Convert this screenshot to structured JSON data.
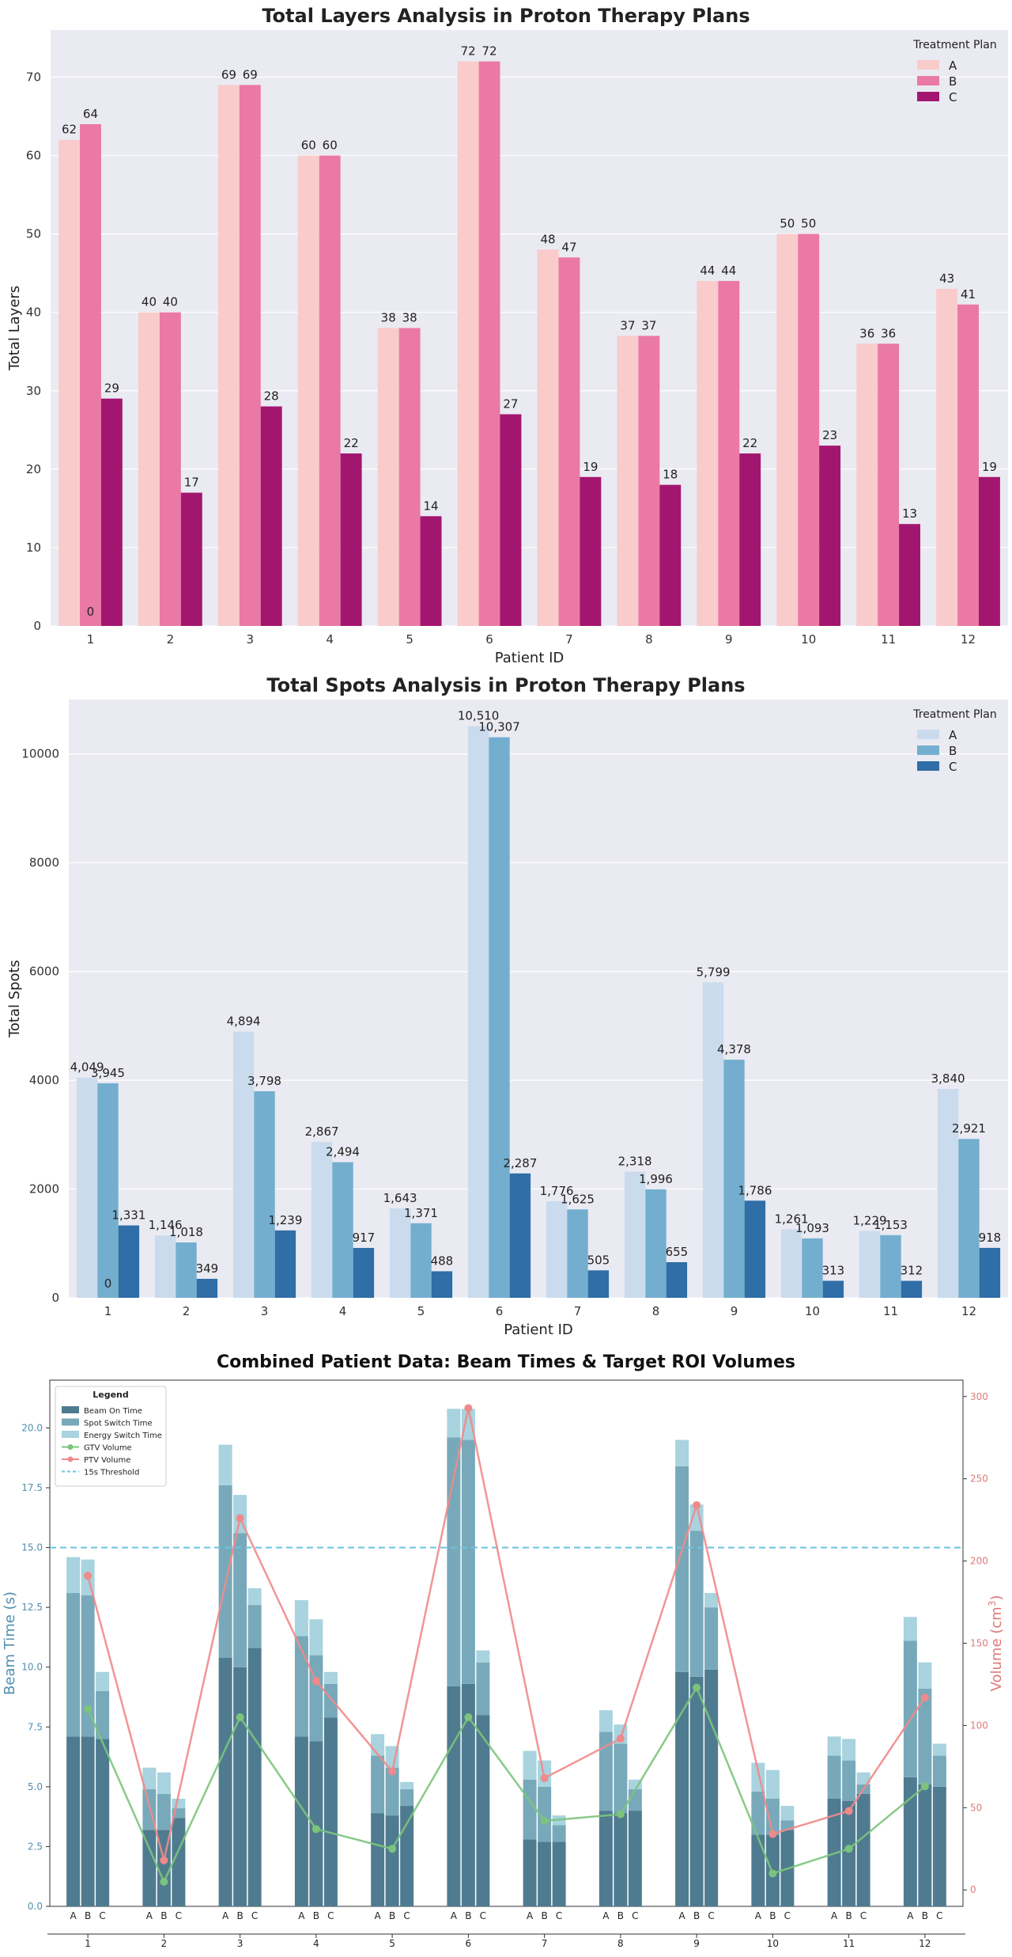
{
  "chart_data": [
    {
      "type": "bar",
      "title": "Total Layers Analysis in Proton Therapy Plans",
      "xlabel": "Patient ID",
      "ylabel": "Total Layers",
      "categories": [
        "1",
        "2",
        "3",
        "4",
        "5",
        "6",
        "7",
        "8",
        "9",
        "10",
        "11",
        "12"
      ],
      "ylim": [
        0,
        76
      ],
      "yticks": [
        0,
        10,
        20,
        30,
        40,
        50,
        60,
        70
      ],
      "grid": true,
      "legend_title": "Treatment Plan",
      "legend_position": "top-right",
      "series": [
        {
          "name": "A",
          "color": "#f9cbcb",
          "values": [
            62,
            40,
            69,
            60,
            38,
            72,
            48,
            37,
            44,
            50,
            36,
            43
          ],
          "labels": [
            "62",
            "40",
            "69",
            "60",
            "38",
            "72",
            "48",
            "37",
            "44",
            "50",
            "36",
            "43"
          ]
        },
        {
          "name": "B",
          "color": "#ea79a6",
          "values": [
            64,
            40,
            69,
            60,
            38,
            72,
            47,
            37,
            44,
            50,
            36,
            41
          ],
          "labels": [
            "64",
            "40",
            "69",
            "60",
            "38",
            "72",
            "47",
            "37",
            "44",
            "50",
            "36",
            "41"
          ]
        },
        {
          "name": "C",
          "color": "#a3166f",
          "values": [
            29,
            17,
            28,
            22,
            14,
            27,
            19,
            18,
            22,
            23,
            13,
            19
          ],
          "labels": [
            "29",
            "17",
            "28",
            "22",
            "14",
            "27",
            "19",
            "18",
            "22",
            "23",
            "13",
            "19"
          ]
        }
      ],
      "extra_labels": [
        {
          "category": "1",
          "text": "0"
        }
      ]
    },
    {
      "type": "bar",
      "title": "Total Spots Analysis in Proton Therapy Plans",
      "xlabel": "Patient ID",
      "ylabel": "Total Spots",
      "categories": [
        "1",
        "2",
        "3",
        "4",
        "5",
        "6",
        "7",
        "8",
        "9",
        "10",
        "11",
        "12"
      ],
      "ylim": [
        0,
        11000
      ],
      "yticks": [
        0,
        2000,
        4000,
        6000,
        8000,
        10000
      ],
      "grid": true,
      "legend_title": "Treatment Plan",
      "legend_position": "top-right",
      "series": [
        {
          "name": "A",
          "color": "#cadbed",
          "values": [
            4049,
            1146,
            4894,
            2867,
            1643,
            10510,
            1776,
            2318,
            5799,
            1261,
            1229,
            3840
          ],
          "labels": [
            "4,049",
            "1,146",
            "4,894",
            "2,867",
            "1,643",
            "10,510",
            "1,776",
            "2,318",
            "5,799",
            "1,261",
            "1,229",
            "3,840"
          ]
        },
        {
          "name": "B",
          "color": "#74aecf",
          "values": [
            3945,
            1018,
            3798,
            2494,
            1371,
            10307,
            1625,
            1996,
            4378,
            1093,
            1153,
            2921
          ],
          "labels": [
            "3,945",
            "1,018",
            "3,798",
            "2,494",
            "1,371",
            "10,307",
            "1,625",
            "1,996",
            "4,378",
            "1,093",
            "1,153",
            "2,921"
          ]
        },
        {
          "name": "C",
          "color": "#2f6ea6",
          "values": [
            1331,
            349,
            1239,
            917,
            488,
            2287,
            505,
            655,
            1786,
            313,
            312,
            918
          ],
          "labels": [
            "1,331",
            "349",
            "1,239",
            "917",
            "488",
            "2,287",
            "505",
            "655",
            "1,786",
            "313",
            "312",
            "918"
          ]
        }
      ],
      "extra_labels": [
        {
          "category": "1",
          "text": "0"
        }
      ]
    },
    {
      "type": "bar",
      "title": "Combined Patient Data: Beam Times & Target ROI Volumes",
      "ylabel": "Beam Time (s)",
      "ylabel_right": "Volume (cm3)",
      "categories": [
        "1",
        "2",
        "3",
        "4",
        "5",
        "6",
        "7",
        "8",
        "9",
        "10",
        "11",
        "12"
      ],
      "plans": [
        "A",
        "B",
        "C"
      ],
      "ylim": [
        0,
        22
      ],
      "yticks": [
        0.0,
        2.5,
        5.0,
        7.5,
        10.0,
        12.5,
        15.0,
        17.5,
        20.0
      ],
      "ylim_right": [
        -10,
        310
      ],
      "yticks_right": [
        0,
        50,
        100,
        150,
        200,
        250,
        300
      ],
      "threshold": 15,
      "grid": false,
      "legend_position": "top-left",
      "legend_title": "Legend",
      "legend": [
        "Beam On Time",
        "Spot Switch Time",
        "Energy Switch Time",
        "GTV Volume",
        "PTV Volume",
        "15s Threshold"
      ],
      "stack_colors": [
        "#4f7b90",
        "#78a9ba",
        "#a8d3df"
      ],
      "series": [
        {
          "name": "Beam On Time",
          "values": [
            [
              7.1,
              7.1,
              7.0
            ],
            [
              3.2,
              3.2,
              3.7
            ],
            [
              10.4,
              10.0,
              10.8
            ],
            [
              7.1,
              6.9,
              7.9
            ],
            [
              3.9,
              3.8,
              4.2
            ],
            [
              9.2,
              9.3,
              8.0
            ],
            [
              2.8,
              2.7,
              2.7
            ],
            [
              4.0,
              3.9,
              4.0
            ],
            [
              9.8,
              9.6,
              9.9
            ],
            [
              3.0,
              3.0,
              3.2
            ],
            [
              4.5,
              4.4,
              4.7
            ],
            [
              5.4,
              5.1,
              5.0
            ]
          ]
        },
        {
          "name": "Spot Switch Time",
          "values": [
            [
              6.0,
              5.9,
              2.0
            ],
            [
              1.7,
              1.5,
              0.4
            ],
            [
              7.2,
              5.6,
              1.8
            ],
            [
              4.2,
              3.6,
              1.4
            ],
            [
              2.4,
              2.0,
              0.7
            ],
            [
              10.4,
              10.2,
              2.2
            ],
            [
              2.5,
              2.3,
              0.7
            ],
            [
              3.3,
              2.9,
              0.9
            ],
            [
              8.6,
              6.1,
              2.6
            ],
            [
              1.8,
              1.5,
              0.4
            ],
            [
              1.8,
              1.7,
              0.4
            ],
            [
              5.7,
              4.0,
              1.3
            ]
          ]
        },
        {
          "name": "Energy Switch Time",
          "values": [
            [
              1.5,
              1.5,
              0.8
            ],
            [
              0.9,
              0.9,
              0.4
            ],
            [
              1.7,
              1.6,
              0.7
            ],
            [
              1.5,
              1.5,
              0.5
            ],
            [
              0.9,
              0.9,
              0.3
            ],
            [
              1.2,
              1.3,
              0.5
            ],
            [
              1.2,
              1.1,
              0.4
            ],
            [
              0.9,
              0.8,
              0.4
            ],
            [
              1.1,
              1.1,
              0.6
            ],
            [
              1.2,
              1.2,
              0.6
            ],
            [
              0.8,
              0.9,
              0.5
            ],
            [
              1.0,
              1.1,
              0.5
            ]
          ]
        },
        {
          "name": "GTV Volume",
          "values": [
            110,
            5,
            105,
            37,
            25,
            105,
            42,
            46,
            123,
            10,
            25,
            63
          ]
        },
        {
          "name": "PTV Volume",
          "values": [
            191,
            18,
            226,
            127,
            72,
            293,
            68,
            92,
            234,
            34,
            48,
            117
          ]
        }
      ]
    }
  ]
}
